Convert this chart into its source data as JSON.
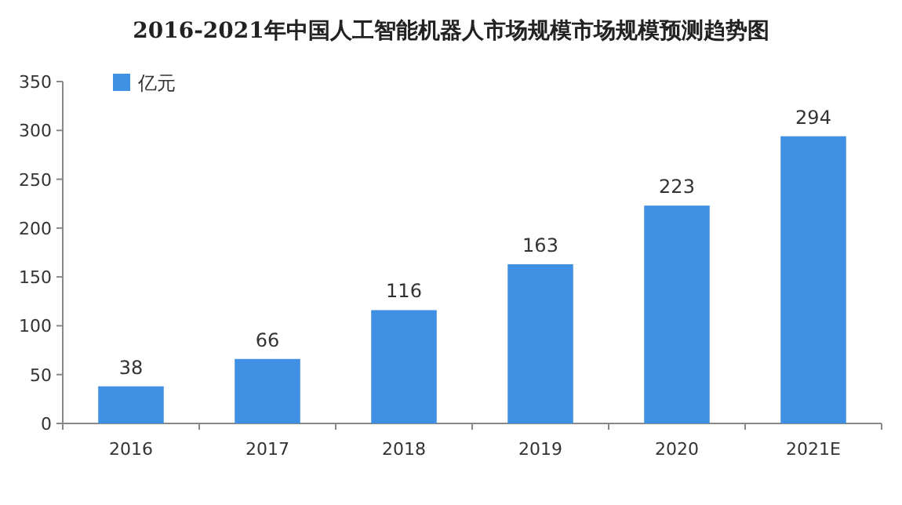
{
  "chart_data": {
    "type": "bar",
    "title": "2016-2021年中国人工智能机器人市场规模市场规模预测趋势图",
    "categories": [
      "2016",
      "2017",
      "2018",
      "2019",
      "2020",
      "2021E"
    ],
    "series": [
      {
        "name": "亿元",
        "color": "#3f8fe3",
        "values": [
          38,
          66,
          116,
          163,
          223,
          294
        ]
      }
    ],
    "ylim": [
      0,
      350
    ],
    "yticks": [
      0,
      50,
      100,
      150,
      200,
      250,
      300,
      350
    ],
    "data_labels": true,
    "legend": "top left"
  }
}
